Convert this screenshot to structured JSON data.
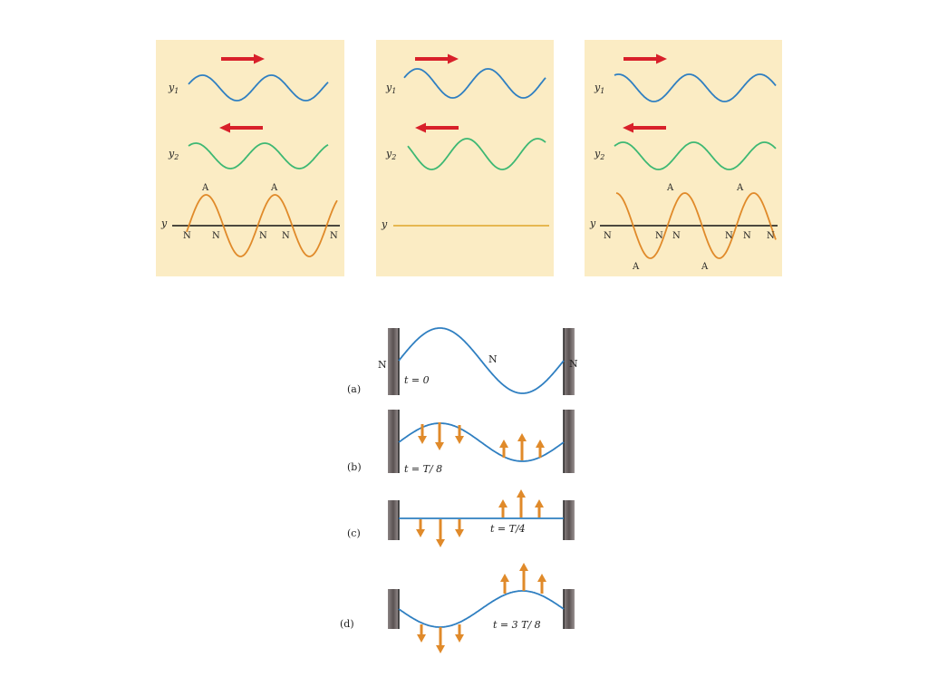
{
  "colors": {
    "panel_bg": "#fbecc4",
    "y1_wave": "#2f7fc1",
    "y2_wave": "#3db873",
    "sum_wave": "#e08a2a",
    "arrow_red": "#d8202a",
    "arrow_orange": "#e08a2a",
    "string_blue": "#2f7fc1",
    "wall": "#6e6464",
    "axis": "#111111"
  },
  "top_panels": [
    {
      "y1_label": "y",
      "y1_sub": "1",
      "y2_label": "y",
      "y2_sub": "2",
      "y_label": "y",
      "y1_arrow": "right",
      "y2_arrow": "left",
      "state": "constructive-phase-a",
      "antinode_labels": [
        "A",
        "A"
      ],
      "node_labels": [
        "N",
        "N",
        "N",
        "N",
        "N"
      ]
    },
    {
      "y1_label": "y",
      "y1_sub": "1",
      "y2_label": "y",
      "y2_sub": "2",
      "y_label": "y",
      "y1_arrow": "right",
      "y2_arrow": "left",
      "state": "cancellation"
    },
    {
      "y1_label": "y",
      "y1_sub": "1",
      "y2_label": "y",
      "y2_sub": "2",
      "y_label": "y",
      "y1_arrow": "right",
      "y2_arrow": "left",
      "state": "constructive-phase-b",
      "antinode_labels_top": [
        "A",
        "A"
      ],
      "antinode_labels_bottom": [
        "A",
        "A"
      ],
      "node_labels": [
        "N",
        "N",
        "N",
        "N",
        "N",
        "N"
      ]
    }
  ],
  "string_frames": [
    {
      "label": "(a)",
      "time": "t = 0",
      "node_labels": [
        "N",
        "N",
        "N"
      ]
    },
    {
      "label": "(b)",
      "time": "t = T/ 8"
    },
    {
      "label": "(c)",
      "time": "t = T/4"
    },
    {
      "label": "(d)",
      "time": "t = 3 T/ 8"
    }
  ],
  "icons": [
    "right-arrow-icon",
    "left-arrow-icon",
    "up-arrow-icon",
    "down-arrow-icon",
    "wall-icon"
  ]
}
